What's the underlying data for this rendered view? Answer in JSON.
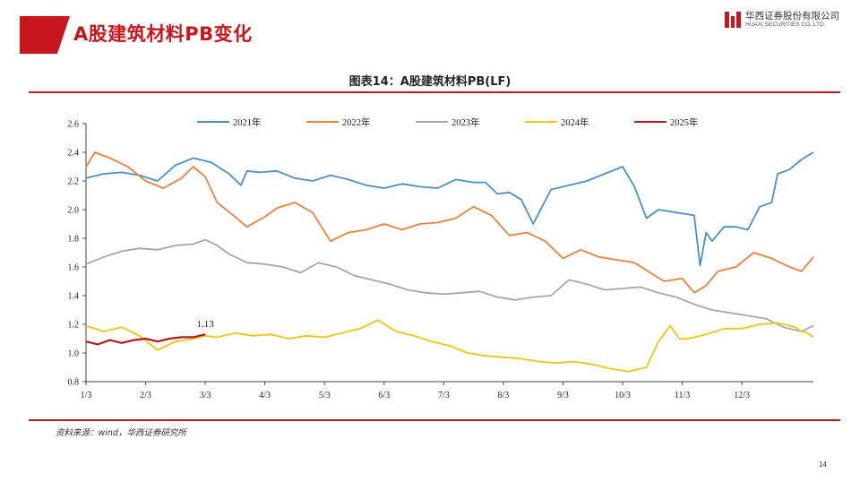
{
  "header": {
    "page_title": "A股建筑材料PB变化",
    "logo_cn": "华西证券股份有限公司",
    "logo_en": "HUAXI SECURITIES CO.,LTD."
  },
  "figure_title": "图表14：A股建筑材料PB(LF)",
  "source": "资料来源：wind，华西证券研究所",
  "page_number": "14",
  "colors": {
    "accent": "#c8161d",
    "2021年": "#4a90c8",
    "2022年": "#e8823a",
    "2023年": "#a6a6a6",
    "2024年": "#f2c40f",
    "2025年": "#b01c1c"
  },
  "chart_data": {
    "type": "line",
    "title": "图表14：A股建筑材料PB(LF)",
    "ylim": [
      0.8,
      2.6
    ],
    "yticks": [
      "0.8",
      "1.0",
      "1.2",
      "1.4",
      "1.6",
      "1.8",
      "2.0",
      "2.2",
      "2.4",
      "2.6"
    ],
    "xlim": [
      0,
      12.2
    ],
    "xticks": [
      "1/3",
      "2/3",
      "3/3",
      "4/3",
      "5/3",
      "6/3",
      "7/3",
      "8/3",
      "9/3",
      "10/3",
      "11/3",
      "12/3"
    ],
    "grid": false,
    "legend_position": "top",
    "annotations": [
      {
        "text": "1.13",
        "x": 2.0,
        "y": 1.13
      }
    ],
    "series": [
      {
        "name": "2021年",
        "x": [
          0,
          0.3,
          0.6,
          0.9,
          1.2,
          1.5,
          1.8,
          2.1,
          2.4,
          2.6,
          2.7,
          2.9,
          3.2,
          3.5,
          3.8,
          4.1,
          4.4,
          4.7,
          5.0,
          5.3,
          5.6,
          5.9,
          6.2,
          6.5,
          6.7,
          6.9,
          7.1,
          7.3,
          7.5,
          7.8,
          8.1,
          8.4,
          8.7,
          9.0,
          9.2,
          9.4,
          9.6,
          9.9,
          10.2,
          10.3,
          10.4,
          10.5,
          10.7,
          10.9,
          11.1,
          11.3,
          11.5,
          11.6,
          11.8,
          12.0,
          12.2
        ],
        "values": [
          2.22,
          2.25,
          2.26,
          2.24,
          2.2,
          2.31,
          2.36,
          2.33,
          2.25,
          2.17,
          2.27,
          2.26,
          2.27,
          2.22,
          2.2,
          2.24,
          2.21,
          2.17,
          2.15,
          2.18,
          2.16,
          2.15,
          2.21,
          2.19,
          2.19,
          2.11,
          2.12,
          2.07,
          1.9,
          2.14,
          2.17,
          2.2,
          2.25,
          2.3,
          2.16,
          1.94,
          2.0,
          1.98,
          1.96,
          1.61,
          1.84,
          1.78,
          1.88,
          1.88,
          1.86,
          2.02,
          2.05,
          2.25,
          2.28,
          2.35,
          2.4
        ]
      },
      {
        "name": "2022年",
        "x": [
          0,
          0.15,
          0.4,
          0.7,
          1.0,
          1.3,
          1.6,
          1.8,
          2.0,
          2.2,
          2.5,
          2.7,
          3.0,
          3.2,
          3.5,
          3.8,
          4.1,
          4.4,
          4.7,
          5.0,
          5.3,
          5.6,
          5.9,
          6.2,
          6.5,
          6.8,
          7.1,
          7.4,
          7.7,
          8.0,
          8.3,
          8.6,
          8.9,
          9.2,
          9.5,
          9.7,
          10.0,
          10.2,
          10.4,
          10.6,
          10.9,
          11.2,
          11.5,
          11.8,
          12.0,
          12.2
        ],
        "values": [
          2.3,
          2.4,
          2.36,
          2.3,
          2.2,
          2.15,
          2.22,
          2.3,
          2.23,
          2.05,
          1.95,
          1.88,
          1.95,
          2.01,
          2.05,
          1.98,
          1.78,
          1.84,
          1.86,
          1.9,
          1.86,
          1.9,
          1.91,
          1.94,
          2.02,
          1.96,
          1.82,
          1.84,
          1.78,
          1.66,
          1.72,
          1.67,
          1.65,
          1.63,
          1.55,
          1.5,
          1.52,
          1.42,
          1.47,
          1.57,
          1.6,
          1.7,
          1.66,
          1.6,
          1.57,
          1.67
        ]
      },
      {
        "name": "2023年",
        "x": [
          0,
          0.3,
          0.6,
          0.9,
          1.2,
          1.5,
          1.8,
          2.0,
          2.2,
          2.4,
          2.7,
          3.0,
          3.3,
          3.6,
          3.9,
          4.2,
          4.5,
          4.8,
          5.1,
          5.4,
          5.7,
          6.0,
          6.3,
          6.6,
          6.9,
          7.2,
          7.5,
          7.8,
          8.1,
          8.4,
          8.7,
          9.0,
          9.3,
          9.6,
          9.9,
          10.2,
          10.5,
          10.8,
          11.1,
          11.4,
          11.7,
          12.0,
          12.2
        ],
        "values": [
          1.62,
          1.67,
          1.71,
          1.73,
          1.72,
          1.75,
          1.76,
          1.79,
          1.75,
          1.69,
          1.63,
          1.62,
          1.6,
          1.56,
          1.63,
          1.6,
          1.54,
          1.51,
          1.48,
          1.44,
          1.42,
          1.41,
          1.42,
          1.43,
          1.39,
          1.37,
          1.39,
          1.4,
          1.51,
          1.48,
          1.44,
          1.45,
          1.46,
          1.42,
          1.39,
          1.34,
          1.3,
          1.28,
          1.26,
          1.24,
          1.18,
          1.15,
          1.19
        ]
      },
      {
        "name": "2024年",
        "x": [
          0,
          0.3,
          0.6,
          0.9,
          1.2,
          1.5,
          1.8,
          2.0,
          2.2,
          2.5,
          2.8,
          3.1,
          3.4,
          3.7,
          4.0,
          4.3,
          4.6,
          4.9,
          5.2,
          5.5,
          5.8,
          6.1,
          6.4,
          6.7,
          7.0,
          7.3,
          7.6,
          7.9,
          8.2,
          8.5,
          8.8,
          9.1,
          9.4,
          9.6,
          9.8,
          9.95,
          10.1,
          10.4,
          10.7,
          11.0,
          11.3,
          11.6,
          11.9,
          12.0,
          12.1,
          12.2
        ],
        "values": [
          1.19,
          1.15,
          1.18,
          1.12,
          1.02,
          1.08,
          1.1,
          1.12,
          1.11,
          1.14,
          1.12,
          1.13,
          1.1,
          1.12,
          1.11,
          1.14,
          1.17,
          1.23,
          1.15,
          1.12,
          1.08,
          1.05,
          1.0,
          0.98,
          0.97,
          0.96,
          0.94,
          0.93,
          0.94,
          0.92,
          0.89,
          0.87,
          0.9,
          1.08,
          1.19,
          1.1,
          1.1,
          1.13,
          1.17,
          1.17,
          1.2,
          1.21,
          1.18,
          1.15,
          1.14,
          1.11
        ]
      },
      {
        "name": "2025年",
        "x": [
          0,
          0.2,
          0.4,
          0.6,
          0.8,
          1.0,
          1.2,
          1.4,
          1.6,
          1.8,
          2.0
        ],
        "values": [
          1.08,
          1.06,
          1.09,
          1.07,
          1.09,
          1.1,
          1.08,
          1.1,
          1.11,
          1.11,
          1.13
        ]
      }
    ]
  }
}
